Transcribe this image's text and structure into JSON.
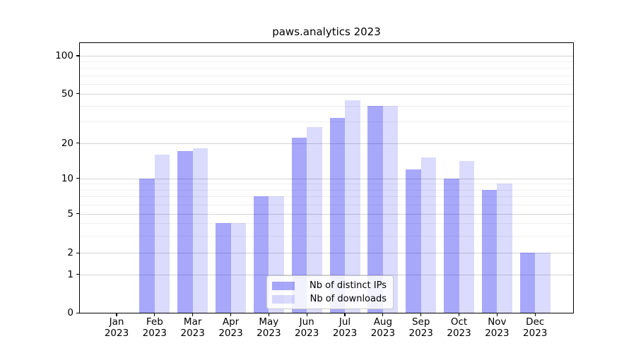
{
  "title": "paws.analytics 2023",
  "colors": {
    "ips_bar": "rgba(0,0,240,0.34)",
    "downloads_bar": "rgba(0,0,240,0.14)",
    "grid_major": "#d4d4d4",
    "grid_minor": "#efefef",
    "axis": "#000000"
  },
  "legend": {
    "items": [
      {
        "label": "Nb of distinct IPs",
        "series": "ips"
      },
      {
        "label": "Nb of downloads",
        "series": "downloads"
      }
    ]
  },
  "chart_data": {
    "type": "bar",
    "title": "paws.analytics 2023",
    "categories": [
      "Jan 2023",
      "Feb 2023",
      "Mar 2023",
      "Apr 2023",
      "May 2023",
      "Jun 2023",
      "Jul 2023",
      "Aug 2023",
      "Sep 2023",
      "Oct 2023",
      "Nov 2023",
      "Dec 2023"
    ],
    "series": [
      {
        "name": "Nb of distinct IPs",
        "key": "ips",
        "values": [
          0,
          10,
          17,
          4,
          7,
          22,
          32,
          40,
          12,
          10,
          8,
          2
        ]
      },
      {
        "name": "Nb of downloads",
        "key": "downloads",
        "values": [
          0,
          16,
          18,
          4,
          7,
          27,
          44,
          40,
          15,
          14,
          9,
          2
        ]
      }
    ],
    "xlabel": "",
    "ylabel": "",
    "yscale": "symlog",
    "ylim": [
      0,
      130
    ],
    "yticks": [
      100,
      50,
      20,
      10,
      5,
      2,
      1,
      0
    ],
    "minor_yticks": [
      3,
      4,
      6,
      7,
      8,
      9,
      30,
      40,
      60,
      70,
      80,
      90
    ],
    "grid": true,
    "legend_position": "lower center"
  }
}
